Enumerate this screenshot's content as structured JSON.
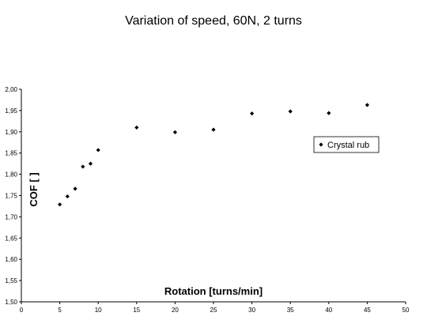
{
  "chart_data": {
    "type": "scatter",
    "title": "Variation of speed, 60N, 2 turns",
    "xlabel": "Rotation [turns/min]",
    "ylabel": "COF [ ]",
    "xlim": [
      0,
      50
    ],
    "ylim": [
      1.5,
      2.0
    ],
    "x_ticks": [
      "0",
      "5",
      "10",
      "15",
      "20",
      "25",
      "30",
      "35",
      "40",
      "45",
      "50"
    ],
    "y_ticks": [
      "1,50",
      "1,55",
      "1,60",
      "1,65",
      "1,70",
      "1,75",
      "1,80",
      "1,85",
      "1,90",
      "1,95",
      "2,00"
    ],
    "grid": false,
    "legend_position": "right",
    "series": [
      {
        "name": "Crystal rub",
        "color": "#000000",
        "marker": "diamond",
        "x": [
          5,
          6,
          7,
          8,
          9,
          10,
          15,
          20,
          25,
          30,
          35,
          40,
          45
        ],
        "y": [
          1.729,
          1.748,
          1.766,
          1.818,
          1.825,
          1.857,
          1.91,
          1.899,
          1.905,
          1.943,
          1.948,
          1.944,
          1.963
        ]
      }
    ]
  }
}
